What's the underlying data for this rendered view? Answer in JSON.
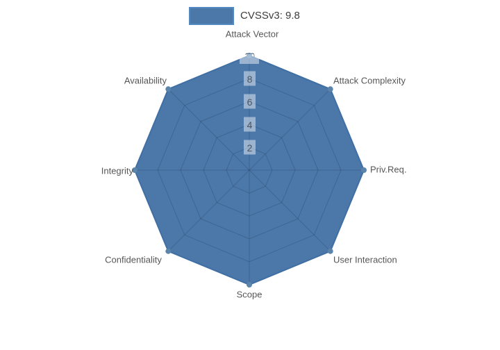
{
  "chart_data": {
    "type": "radar",
    "title": "",
    "categories": [
      "Attack Vector",
      "Attack Complexity",
      "Priv.Req.",
      "User Interaction",
      "Scope",
      "Confidentiality",
      "Integrity",
      "Availability"
    ],
    "series": [
      {
        "name": "CVSSv3: 9.8",
        "values": [
          10,
          10,
          10,
          10,
          10,
          10,
          10,
          10
        ],
        "fill_color": "#4b77a9",
        "line_color": "#3f6fa3",
        "marker_color": "#5b84ab",
        "legend_border_color": "#5189c0"
      }
    ],
    "radial_ticks": [
      2,
      4,
      6,
      8,
      10
    ],
    "radial_tick_labels": [
      "2",
      "4",
      "6",
      "8",
      "10"
    ],
    "radial_range": [
      0,
      10
    ],
    "grid": true,
    "grid_shape": "polygon",
    "grid_color": "rgba(22,42,66,0.22)",
    "tick_text_color": "#4c5560",
    "tick_box_color": "rgba(255,255,255,0.45)",
    "tick_box_color_max": "rgba(255,255,255,0.9)",
    "axis_label_color": "#565656",
    "legend_position": "top-center",
    "background_color": "#ffffff"
  }
}
